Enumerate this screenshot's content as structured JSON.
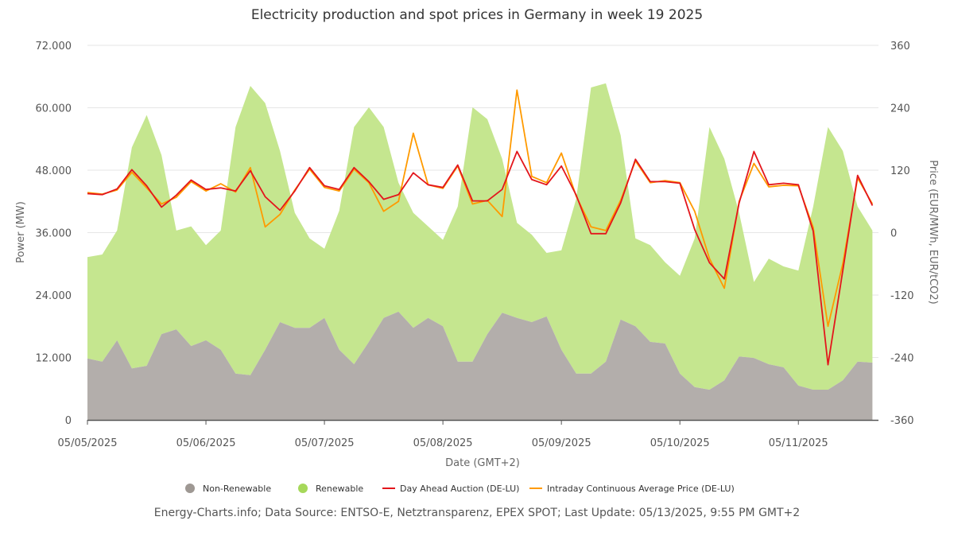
{
  "chart_data": {
    "type": "area",
    "title": "Electricity production and spot prices in Germany in week 19 2025",
    "xlabel": "Date (GMT+2)",
    "ylabel_left": "Power (MW)",
    "ylabel_right": "Price (EUR/MWh, EUR/tCO2)",
    "ylim_left": [
      0,
      72000
    ],
    "ylim_right": [
      -360,
      360
    ],
    "xlim": [
      "2025-05-05 00:00",
      "2025-05-11 16:00"
    ],
    "y_ticks_left": [
      "0",
      "12.000",
      "24.000",
      "36.000",
      "48.000",
      "60.000",
      "72.000"
    ],
    "y_ticks_right": [
      "-360",
      "-240",
      "-120",
      "0",
      "120",
      "240",
      "360"
    ],
    "x_ticks": [
      "05/05/2025",
      "05/06/2025",
      "05/07/2025",
      "05/08/2025",
      "05/09/2025",
      "05/10/2025",
      "05/11/2025"
    ],
    "grid": true,
    "legend_position": "bottom",
    "x": [
      "2025-05-05 00:00",
      "2025-05-05 03:00",
      "2025-05-05 06:00",
      "2025-05-05 09:00",
      "2025-05-05 12:00",
      "2025-05-05 15:00",
      "2025-05-05 18:00",
      "2025-05-05 21:00",
      "2025-05-06 00:00",
      "2025-05-06 03:00",
      "2025-05-06 06:00",
      "2025-05-06 09:00",
      "2025-05-06 12:00",
      "2025-05-06 15:00",
      "2025-05-06 18:00",
      "2025-05-06 21:00",
      "2025-05-07 00:00",
      "2025-05-07 03:00",
      "2025-05-07 06:00",
      "2025-05-07 09:00",
      "2025-05-07 12:00",
      "2025-05-07 15:00",
      "2025-05-07 18:00",
      "2025-05-07 21:00",
      "2025-05-08 00:00",
      "2025-05-08 03:00",
      "2025-05-08 06:00",
      "2025-05-08 09:00",
      "2025-05-08 12:00",
      "2025-05-08 15:00",
      "2025-05-08 18:00",
      "2025-05-08 21:00",
      "2025-05-09 00:00",
      "2025-05-09 03:00",
      "2025-05-09 06:00",
      "2025-05-09 09:00",
      "2025-05-09 12:00",
      "2025-05-09 15:00",
      "2025-05-09 18:00",
      "2025-05-09 21:00",
      "2025-05-10 00:00",
      "2025-05-10 03:00",
      "2025-05-10 06:00",
      "2025-05-10 09:00",
      "2025-05-10 12:00",
      "2025-05-10 15:00",
      "2025-05-10 18:00",
      "2025-05-10 21:00",
      "2025-05-11 00:00",
      "2025-05-11 03:00",
      "2025-05-11 06:00",
      "2025-05-11 09:00",
      "2025-05-11 12:00",
      "2025-05-11 15:00"
    ],
    "series": [
      {
        "name": "Non-Renewable",
        "type": "area",
        "axis": "left",
        "color": "#b3aeab",
        "legend_color": "#9e9893",
        "values": [
          11800,
          11200,
          15300,
          9900,
          10400,
          16500,
          17400,
          14200,
          15300,
          13500,
          8900,
          8600,
          13500,
          18800,
          17700,
          17700,
          19600,
          13500,
          10700,
          15000,
          19600,
          20800,
          17700,
          19600,
          18000,
          11200,
          11200,
          16500,
          20600,
          19600,
          18800,
          19900,
          13500,
          8900,
          8900,
          11200,
          19300,
          18000,
          15000,
          14700,
          8900,
          6300,
          5800,
          7600,
          12200,
          11900,
          10700,
          10100,
          6600,
          5800,
          5800,
          7600,
          11200,
          11000
        ]
      },
      {
        "name": "Renewable",
        "type": "area",
        "axis": "left",
        "stacked": true,
        "color": "#c5e68f",
        "legend_color": "#a6d85a",
        "values": [
          19500,
          20600,
          21100,
          42500,
          48200,
          34400,
          19000,
          23000,
          18300,
          22900,
          47400,
          55600,
          47400,
          32900,
          22100,
          17200,
          13300,
          26700,
          45600,
          45100,
          36700,
          24800,
          22100,
          17600,
          16600,
          29800,
          48900,
          41300,
          29600,
          18300,
          16800,
          12200,
          19100,
          33600,
          55000,
          53500,
          35400,
          16900,
          18600,
          15600,
          18800,
          28600,
          50500,
          42600,
          27600,
          14600,
          20300,
          19400,
          22100,
          35200,
          50500,
          44100,
          29800,
          25400
        ]
      },
      {
        "name": "Day Ahead Auction (DE-LU)",
        "type": "line",
        "axis": "right",
        "color": "#e3161c",
        "values": [
          75,
          73,
          84,
          121,
          90,
          49,
          72,
          101,
          83,
          86,
          80,
          119,
          69,
          43,
          80,
          125,
          90,
          83,
          125,
          98,
          64,
          73,
          115,
          92,
          87,
          130,
          61,
          61,
          83,
          156,
          102,
          92,
          128,
          72,
          -2,
          -2,
          57,
          141,
          98,
          98,
          95,
          6,
          -58,
          -89,
          57,
          156,
          92,
          95,
          92,
          3,
          -254,
          -73,
          110,
          52
        ]
      },
      {
        "name": "Intraday Continuous Average Price (DE-LU)",
        "type": "line",
        "axis": "right",
        "color": "#ff9a00",
        "values": [
          77,
          74,
          82,
          116,
          86,
          55,
          68,
          98,
          80,
          94,
          78,
          125,
          11,
          35,
          82,
          122,
          87,
          80,
          122,
          96,
          41,
          60,
          191,
          92,
          85,
          128,
          55,
          62,
          31,
          274,
          108,
          96,
          153,
          70,
          11,
          4,
          62,
          138,
          96,
          100,
          96,
          41,
          -50,
          -107,
          60,
          133,
          88,
          91,
          90,
          10,
          -180,
          -60,
          105,
          55
        ]
      }
    ]
  },
  "legend": [
    "Non-Renewable",
    "Renewable",
    "Day Ahead Auction (DE-LU)",
    "Intraday Continuous Average Price (DE-LU)"
  ],
  "footer": "Energy-Charts.info; Data Source: ENTSO-E, Netztransparenz, EPEX SPOT; Last Update: 05/13/2025, 9:55 PM GMT+2"
}
